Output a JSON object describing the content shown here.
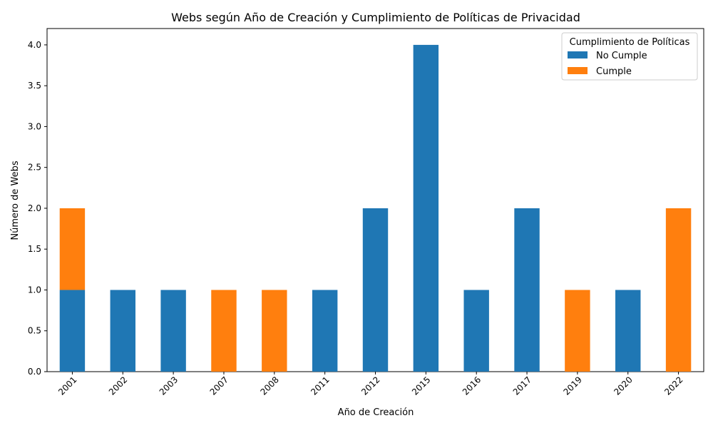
{
  "chart_data": {
    "type": "bar",
    "stacked": true,
    "title": "Webs según Año de Creación y Cumplimiento de Políticas de Privacidad",
    "xlabel": "Año de Creación",
    "ylabel": "Número de Webs",
    "categories": [
      "2001",
      "2002",
      "2003",
      "2007",
      "2008",
      "2011",
      "2012",
      "2015",
      "2016",
      "2017",
      "2019",
      "2020",
      "2022"
    ],
    "series": [
      {
        "name": "No Cumple",
        "color": "#1f77b4",
        "values": [
          1,
          1,
          1,
          0,
          0,
          1,
          2,
          4,
          1,
          2,
          0,
          1,
          0
        ]
      },
      {
        "name": "Cumple",
        "color": "#ff7f0e",
        "values": [
          1,
          0,
          0,
          1,
          1,
          0,
          0,
          0,
          0,
          0,
          1,
          0,
          2
        ]
      }
    ],
    "ylim": [
      0,
      4.2
    ],
    "yticks": [
      0.0,
      0.5,
      1.0,
      1.5,
      2.0,
      2.5,
      3.0,
      3.5,
      4.0
    ],
    "ytick_labels": [
      "0.0",
      "0.5",
      "1.0",
      "1.5",
      "2.0",
      "2.5",
      "3.0",
      "3.5",
      "4.0"
    ],
    "grid": false,
    "legend": {
      "title": "Cumplimiento de Políticas",
      "placement": "top-right"
    }
  }
}
